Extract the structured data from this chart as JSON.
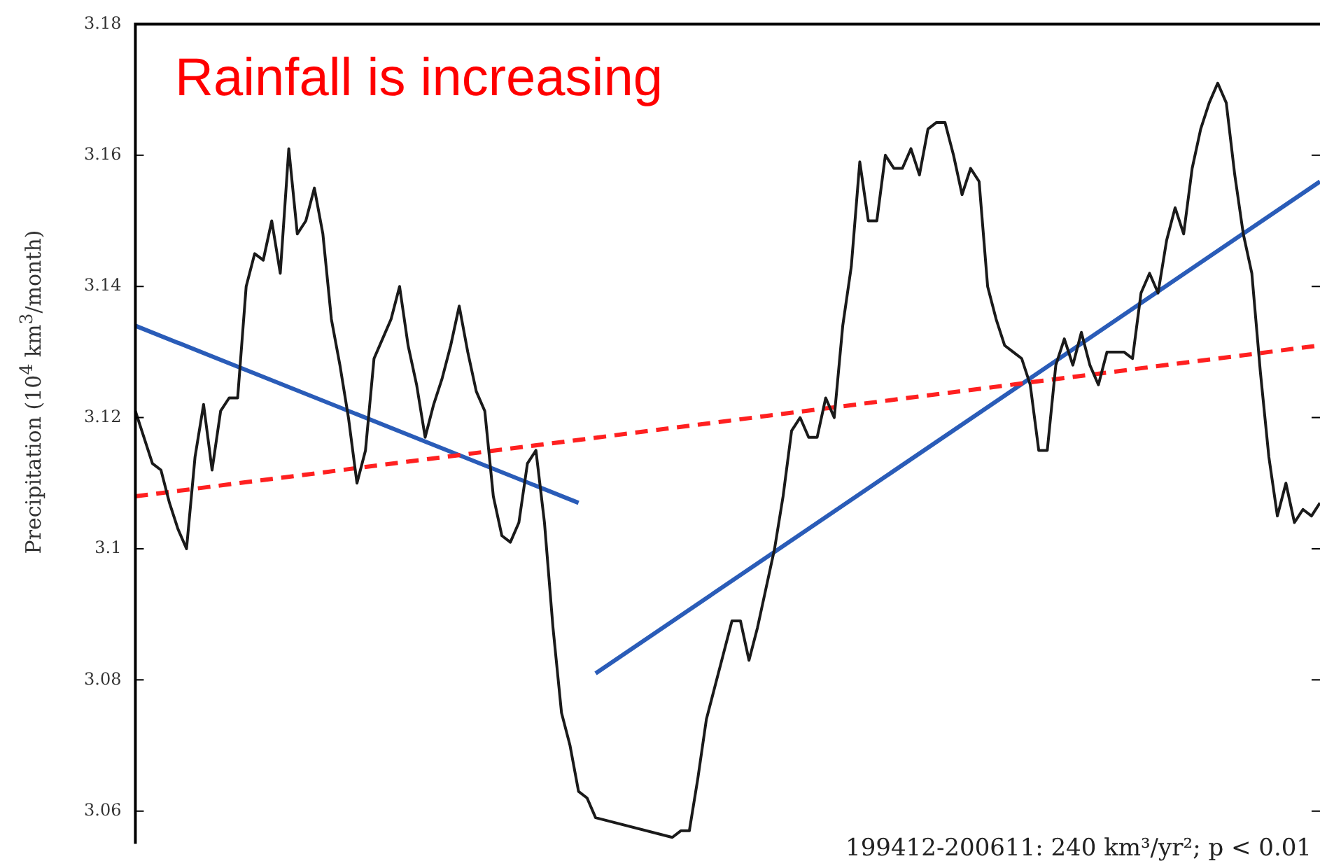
{
  "chart_data": {
    "type": "line",
    "ylabel": "Precipitation (10$^{4}$ km$^{3}$/month)",
    "annotations": [
      "Rainfall is increasing",
      "199412-200611: 240 km³/yr²; p < 0.01"
    ],
    "categories": [
      null,
      null,
      null,
      null,
      null,
      null,
      null,
      null,
      null,
      null,
      null,
      null,
      null,
      null,
      null,
      null,
      null,
      null,
      null,
      null,
      null,
      null,
      null,
      null,
      null,
      null,
      null,
      null,
      null,
      null,
      null,
      null,
      null,
      null,
      null,
      null,
      null,
      null,
      null,
      null,
      null,
      null,
      null,
      null,
      null,
      null,
      null,
      null,
      null,
      null,
      null,
      null,
      null,
      null,
      null,
      null,
      null,
      null,
      null,
      null,
      null,
      null,
      null,
      null,
      null,
      null,
      null,
      null,
      null,
      null,
      null,
      null,
      null,
      null,
      null,
      null,
      null,
      null,
      null,
      null,
      null,
      null,
      null,
      null,
      null,
      null,
      null,
      null,
      null,
      null,
      null,
      null,
      null,
      null,
      null,
      null,
      null,
      null,
      null,
      null,
      null,
      null,
      null,
      null,
      null,
      null,
      null,
      null,
      null,
      null,
      null,
      null,
      null,
      null,
      null,
      null,
      null,
      null,
      null,
      null,
      null,
      null,
      null,
      null,
      null,
      null,
      null,
      null,
      null,
      null,
      null,
      null,
      null,
      null,
      null,
      null,
      null,
      null,
      null,
      null
    ],
    "series": [
      {
        "color": "#1a1a1a",
        "line_style": "solid",
        "values": [
          3.121,
          3.117,
          3.113,
          3.112,
          3.107,
          3.103,
          3.1,
          3.114,
          3.122,
          3.112,
          3.121,
          3.123,
          3.123,
          3.14,
          3.145,
          3.144,
          3.15,
          3.142,
          3.161,
          3.148,
          3.15,
          3.155,
          3.148,
          3.135,
          3.128,
          3.12,
          3.11,
          3.115,
          3.129,
          3.132,
          3.135,
          3.14,
          3.131,
          3.125,
          3.117,
          3.122,
          3.126,
          3.131,
          3.137,
          3.13,
          3.124,
          3.121,
          3.108,
          3.102,
          3.101,
          3.104,
          3.113,
          3.115,
          3.104,
          3.088,
          3.075,
          3.07,
          3.063,
          3.062,
          3.059,
          null,
          null,
          null,
          null,
          null,
          null,
          null,
          null,
          3.056,
          3.057,
          3.057,
          3.065,
          3.074,
          3.079,
          3.084,
          3.089,
          3.089,
          3.083,
          3.088,
          3.094,
          3.1,
          3.108,
          3.118,
          3.12,
          3.117,
          3.117,
          3.123,
          3.12,
          3.134,
          3.143,
          3.159,
          3.15,
          3.15,
          3.16,
          3.158,
          3.158,
          3.161,
          3.157,
          3.164,
          3.165,
          3.165,
          3.16,
          3.154,
          3.158,
          3.156,
          3.14,
          3.135,
          3.131,
          3.13,
          3.129,
          3.125,
          3.115,
          3.115,
          3.128,
          3.132,
          3.128,
          3.133,
          3.128,
          3.125,
          3.13,
          3.13,
          3.13,
          3.129,
          3.139,
          3.142,
          3.139,
          3.147,
          3.152,
          3.148,
          3.158,
          3.164,
          3.168,
          3.171,
          3.168,
          3.157,
          3.148,
          3.142,
          3.127,
          3.114,
          3.105,
          3.11,
          3.104,
          3.106,
          3.105,
          3.107
        ]
      },
      {
        "color": "#ff2020",
        "line_style": "dashed",
        "values": [
          3.108,
          null,
          null,
          null,
          null,
          null,
          null,
          null,
          null,
          null,
          null,
          null,
          null,
          null,
          null,
          null,
          null,
          null,
          null,
          null,
          null,
          null,
          null,
          null,
          null,
          null,
          null,
          null,
          null,
          null,
          null,
          null,
          null,
          null,
          null,
          null,
          null,
          null,
          null,
          null,
          null,
          null,
          null,
          null,
          null,
          null,
          null,
          null,
          null,
          null,
          null,
          null,
          null,
          null,
          null,
          null,
          null,
          null,
          null,
          null,
          null,
          null,
          null,
          null,
          null,
          null,
          null,
          null,
          null,
          null,
          null,
          null,
          null,
          null,
          null,
          null,
          null,
          null,
          null,
          null,
          null,
          null,
          null,
          null,
          null,
          null,
          null,
          null,
          null,
          null,
          null,
          null,
          null,
          null,
          null,
          null,
          null,
          null,
          null,
          null,
          null,
          null,
          null,
          null,
          null,
          null,
          null,
          null,
          null,
          null,
          null,
          null,
          null,
          null,
          null,
          null,
          null,
          null,
          null,
          null,
          null,
          null,
          null,
          null,
          null,
          null,
          null,
          null,
          null,
          null,
          null,
          null,
          null,
          null,
          null,
          null,
          null,
          null,
          null,
          3.131
        ]
      },
      {
        "color": "#2a5cb8",
        "line_style": "solid",
        "values": [
          3.134,
          null,
          null,
          null,
          null,
          null,
          null,
          null,
          null,
          null,
          null,
          null,
          null,
          null,
          null,
          null,
          null,
          null,
          null,
          null,
          null,
          null,
          null,
          null,
          null,
          null,
          null,
          null,
          null,
          null,
          null,
          null,
          null,
          null,
          null,
          null,
          null,
          null,
          null,
          null,
          null,
          null,
          null,
          null,
          null,
          null,
          null,
          null,
          null,
          null,
          null,
          null,
          3.107,
          null,
          null,
          null,
          null,
          null,
          null,
          null,
          null,
          null,
          null,
          null,
          null,
          null,
          null,
          null,
          null,
          null,
          null,
          null,
          null,
          null,
          null,
          null,
          null,
          null,
          null,
          null,
          null,
          null,
          null,
          null,
          null,
          null,
          null,
          null,
          null,
          null,
          null,
          null,
          null,
          null,
          null,
          null,
          null,
          null,
          null,
          null,
          null,
          null,
          null,
          null,
          null,
          null,
          null,
          null,
          null,
          null,
          null,
          null,
          null,
          null,
          null,
          null,
          null,
          null,
          null,
          null,
          null,
          null,
          null,
          null,
          null,
          null,
          null,
          null,
          null,
          null,
          null,
          null,
          null,
          null,
          null,
          null,
          null,
          null,
          null,
          null
        ]
      },
      {
        "color": "#2a5cb8",
        "line_style": "solid",
        "values": [
          null,
          null,
          null,
          null,
          null,
          null,
          null,
          null,
          null,
          null,
          null,
          null,
          null,
          null,
          null,
          null,
          null,
          null,
          null,
          null,
          null,
          null,
          null,
          null,
          null,
          null,
          null,
          null,
          null,
          null,
          null,
          null,
          null,
          null,
          null,
          null,
          null,
          null,
          null,
          null,
          null,
          null,
          null,
          null,
          null,
          null,
          null,
          null,
          null,
          null,
          null,
          null,
          null,
          null,
          3.081,
          null,
          null,
          null,
          null,
          null,
          null,
          null,
          null,
          null,
          null,
          null,
          null,
          null,
          null,
          null,
          null,
          null,
          null,
          null,
          null,
          null,
          null,
          null,
          null,
          null,
          null,
          null,
          null,
          null,
          null,
          null,
          null,
          null,
          null,
          null,
          null,
          null,
          null,
          null,
          null,
          null,
          null,
          null,
          null,
          null,
          null,
          null,
          null,
          null,
          null,
          null,
          null,
          null,
          null,
          null,
          null,
          null,
          null,
          null,
          null,
          null,
          null,
          null,
          null,
          null,
          null,
          null,
          null,
          null,
          null,
          null,
          null,
          null,
          null,
          null,
          null,
          null,
          null,
          null,
          null,
          null,
          null,
          null,
          null,
          3.156
        ]
      }
    ],
    "ylim": [
      3.055,
      3.18
    ],
    "yticks": [
      3.06,
      3.08,
      3.1,
      3.12,
      3.14,
      3.16,
      3.18
    ],
    "tick_labels": "y",
    "grid": false,
    "legend": false,
    "marker": "none"
  }
}
